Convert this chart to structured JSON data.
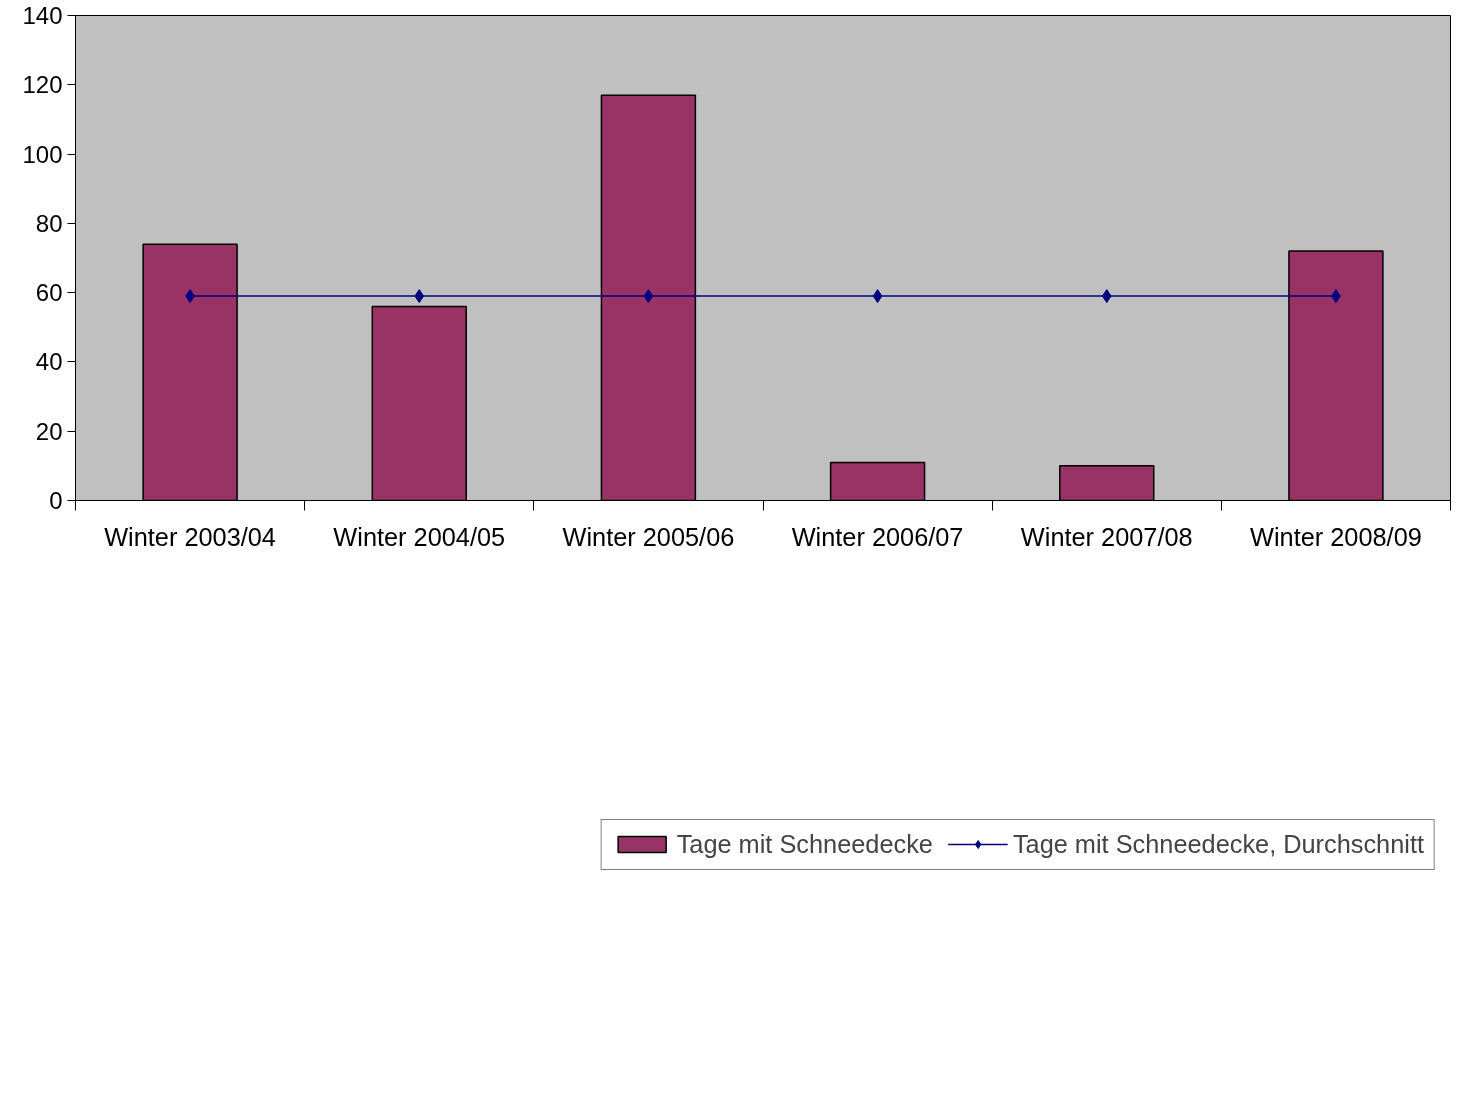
{
  "chart_data": {
    "type": "bar",
    "categories": [
      "Winter 2003/04",
      "Winter 2004/05",
      "Winter 2005/06",
      "Winter 2006/07",
      "Winter 2007/08",
      "Winter 2008/09"
    ],
    "series": [
      {
        "name": "Tage mit Schneedecke",
        "color": "#993366",
        "values": [
          74,
          56,
          117,
          11,
          10,
          72
        ]
      },
      {
        "name": "Tage mit Schneedecke, Durchschnitt",
        "color": "#000080",
        "type": "line",
        "marker": "diamond",
        "values": [
          59,
          59,
          59,
          59,
          59,
          59
        ]
      }
    ],
    "ylim": [
      0,
      140
    ],
    "yticks": [
      0,
      20,
      40,
      60,
      80,
      100,
      120,
      140
    ],
    "grid": false,
    "legend": "bottom"
  }
}
